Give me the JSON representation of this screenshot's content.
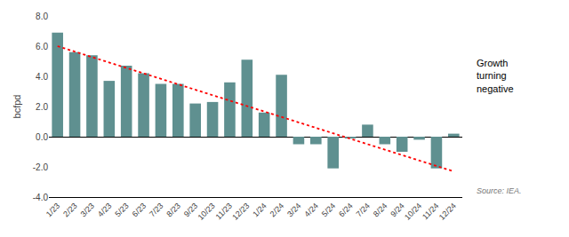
{
  "chart_data": {
    "type": "bar",
    "categories": [
      "1/23",
      "2/23",
      "3/23",
      "4/23",
      "5/23",
      "6/23",
      "7/23",
      "8/23",
      "9/23",
      "10/23",
      "11/23",
      "12/23",
      "1/24",
      "2/24",
      "3/24",
      "4/24",
      "5/24",
      "6/24",
      "7/24",
      "8/24",
      "9/24",
      "10/24",
      "11/24",
      "12/24"
    ],
    "values": [
      6.9,
      5.6,
      5.4,
      3.7,
      4.7,
      4.2,
      3.5,
      3.5,
      2.2,
      2.3,
      3.6,
      5.1,
      1.6,
      4.1,
      -0.5,
      -0.5,
      -2.1,
      -0.1,
      0.8,
      -0.5,
      -1.0,
      -0.2,
      -2.1,
      0.2
    ],
    "color": "#5f9090",
    "trendline": {
      "start": 6.0,
      "end": -2.3,
      "color": "#ff0000",
      "line_style": "dotted"
    },
    "ylabel": "bcfpd",
    "ylim": [
      -4.0,
      8.0
    ],
    "yticks": [
      {
        "value": -4.0,
        "label": "-4.0"
      },
      {
        "value": -2.0,
        "label": "-2.0"
      },
      {
        "value": 0.0,
        "label": "0.0"
      },
      {
        "value": 2.0,
        "label": "2.0"
      },
      {
        "value": 4.0,
        "label": "4.0"
      },
      {
        "value": 6.0,
        "label": "6.0"
      },
      {
        "value": 8.0,
        "label": "8.0"
      }
    ],
    "annotation": "Growth\nturning\nnegative",
    "source": "Source: IEA.",
    "grid": false
  }
}
